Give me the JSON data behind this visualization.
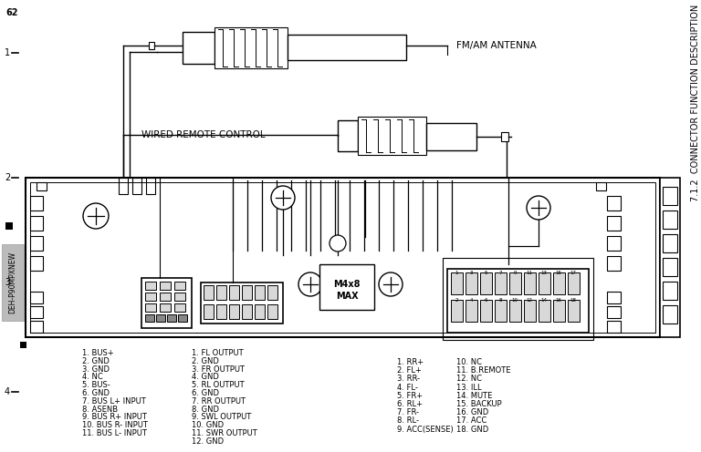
{
  "title_rotated": "7.1.2  CONNECTOR FUNCTION DESCRIPTION",
  "page_num_top": "62",
  "left_label": "DEH-P90MPXNEW",
  "fm_am_antenna_label": "FM/AM ANTENNA",
  "wired_remote_label": "WIRED REMOTE CONTROL",
  "col1_items": [
    "1. BUS+",
    "2. GND",
    "3. GND",
    "4. NC",
    "5. BUS-",
    "6. GND",
    "7. BUS L+ INPUT",
    "8. ASENB",
    "9. BUS R+ INPUT",
    "10. BUS R- INPUT",
    "11. BUS L- INPUT"
  ],
  "col2_items": [
    "1. FL OUTPUT",
    "2. GND",
    "3. FR OUTPUT",
    "4. GND",
    "5. RL OUTPUT",
    "6. GND",
    "7. RR OUTPUT",
    "8. GND",
    "9. SWL OUTPUT",
    "10. GND",
    "11. SWR OUTPUT",
    "12. GND"
  ],
  "col3_left_items": [
    "1. RR+",
    "2. FL+",
    "3. RR-",
    "4. FL-",
    "5. FR+",
    "6. RL+",
    "7. FR-",
    "8. RL-",
    "9. ACC(SENSE)"
  ],
  "col3_right_items": [
    "10. NC",
    "11. B.REMOTE",
    "12. NC",
    "13. ILL",
    "14. MUTE",
    "15. BACKUP",
    "16. GND",
    "17. ACC",
    "18. GND"
  ],
  "bg_color": "#ffffff",
  "line_color": "#000000",
  "text_color": "#000000"
}
